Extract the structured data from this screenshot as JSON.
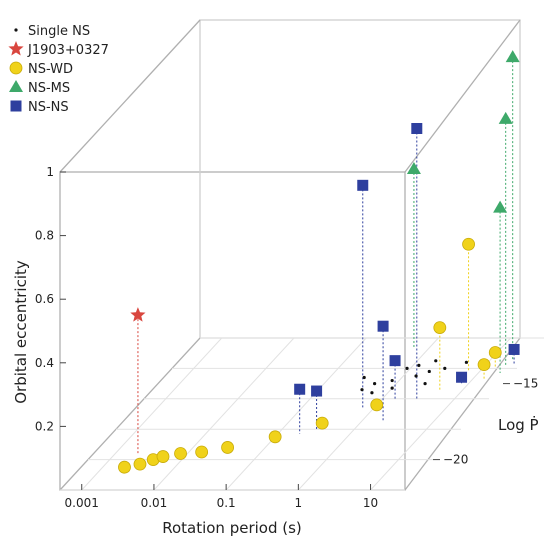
{
  "chart_data": {
    "type": "scatter",
    "projection": "3d",
    "title": "",
    "xlabel": "Rotation period (s)",
    "ylabel": "Orbital eccentricity",
    "zlabel": "Log Ṗ",
    "x_scale": "log",
    "xlim": [
      0.0005,
      30
    ],
    "ylim": [
      0,
      1
    ],
    "zlim": [
      -22,
      -12
    ],
    "x_ticks": [
      0.001,
      0.01,
      0.1,
      1,
      10
    ],
    "x_tick_labels": [
      "0.001",
      "0.01",
      "0.1",
      "1",
      "10"
    ],
    "y_ticks": [
      0.2,
      0.4,
      0.6,
      0.8,
      1
    ],
    "y_tick_labels": [
      "0.2",
      "0.4",
      "0.6",
      "0.8",
      "1"
    ],
    "z_ticks": [
      -15,
      -20
    ],
    "z_tick_labels": [
      "−15",
      "−20"
    ],
    "grid": true,
    "legend_position": "top-left",
    "series": [
      {
        "name": "Single NS",
        "marker": "dot",
        "color": "#111111",
        "points": [
          {
            "x": 1.5,
            "y": 0,
            "z": -14.5
          },
          {
            "x": 0.8,
            "y": 0,
            "z": -14.8
          },
          {
            "x": 2.0,
            "y": 0,
            "z": -14.2
          },
          {
            "x": 0.5,
            "y": 0,
            "z": -15.0
          },
          {
            "x": 3.0,
            "y": 0,
            "z": -14.0
          },
          {
            "x": 1.0,
            "y": 0,
            "z": -15.3
          },
          {
            "x": 0.3,
            "y": 0,
            "z": -14.6
          },
          {
            "x": 1.2,
            "y": 0,
            "z": -13.8
          },
          {
            "x": 5.0,
            "y": 0,
            "z": -13.6
          },
          {
            "x": 0.6,
            "y": 0,
            "z": -15.6
          },
          {
            "x": 2.5,
            "y": 0,
            "z": -15.0
          },
          {
            "x": 0.9,
            "y": 0,
            "z": -14.0
          },
          {
            "x": 0.4,
            "y": 0,
            "z": -15.4
          },
          {
            "x": 1.8,
            "y": 0,
            "z": -13.5
          }
        ]
      },
      {
        "name": "J1903+0327",
        "marker": "star",
        "color": "#d9463e",
        "points": [
          {
            "x": 0.00215,
            "y": 0.44,
            "z": -19.7
          }
        ]
      },
      {
        "name": "NS-WD",
        "marker": "circle",
        "color": "#f0d21a",
        "points": [
          {
            "x": 0.002,
            "y": 0.0,
            "z": -20.5
          },
          {
            "x": 0.003,
            "y": 0.0,
            "z": -20.3
          },
          {
            "x": 0.004,
            "y": 0.0,
            "z": -20.0
          },
          {
            "x": 0.005,
            "y": 0.0,
            "z": -19.8
          },
          {
            "x": 0.008,
            "y": 0.0,
            "z": -19.6
          },
          {
            "x": 0.015,
            "y": 0.0,
            "z": -19.5
          },
          {
            "x": 0.03,
            "y": 0.0,
            "z": -19.2
          },
          {
            "x": 0.1,
            "y": 0.0,
            "z": -18.5
          },
          {
            "x": 0.3,
            "y": 0.0,
            "z": -17.6
          },
          {
            "x": 1.0,
            "y": 0.0,
            "z": -16.4
          },
          {
            "x": 5.0,
            "y": 0.2,
            "z": -15.5
          },
          {
            "x": 7.0,
            "y": 0.4,
            "z": -14.2
          },
          {
            "x": 15.0,
            "y": 0.05,
            "z": -14.0
          },
          {
            "x": 15.0,
            "y": 0.05,
            "z": -14.8
          }
        ]
      },
      {
        "name": "NS-MS",
        "marker": "triangle",
        "color": "#3ea96a",
        "points": [
          {
            "x": 0.6,
            "y": 0.56,
            "z": -12.6
          },
          {
            "x": 20.0,
            "y": 0.95,
            "z": -13.4
          },
          {
            "x": 20.0,
            "y": 0.78,
            "z": -13.9
          },
          {
            "x": 20.0,
            "y": 0.52,
            "z": -14.3
          }
        ]
      },
      {
        "name": "NS-NS",
        "marker": "square",
        "color": "#2e3f9e",
        "points": [
          {
            "x": 0.2,
            "y": 0.14,
            "z": -18.3
          },
          {
            "x": 0.3,
            "y": 0.12,
            "z": -18.0
          },
          {
            "x": 0.7,
            "y": 0.7,
            "z": -16.6
          },
          {
            "x": 1.5,
            "y": 0.12,
            "z": -16.0
          },
          {
            "x": 2.0,
            "y": 0.3,
            "z": -17.5
          },
          {
            "x": 3.0,
            "y": 0.85,
            "z": -16.0
          },
          {
            "x": 8.0,
            "y": 0.02,
            "z": -15.0
          },
          {
            "x": 25.0,
            "y": 0.05,
            "z": -13.8
          }
        ]
      }
    ]
  }
}
